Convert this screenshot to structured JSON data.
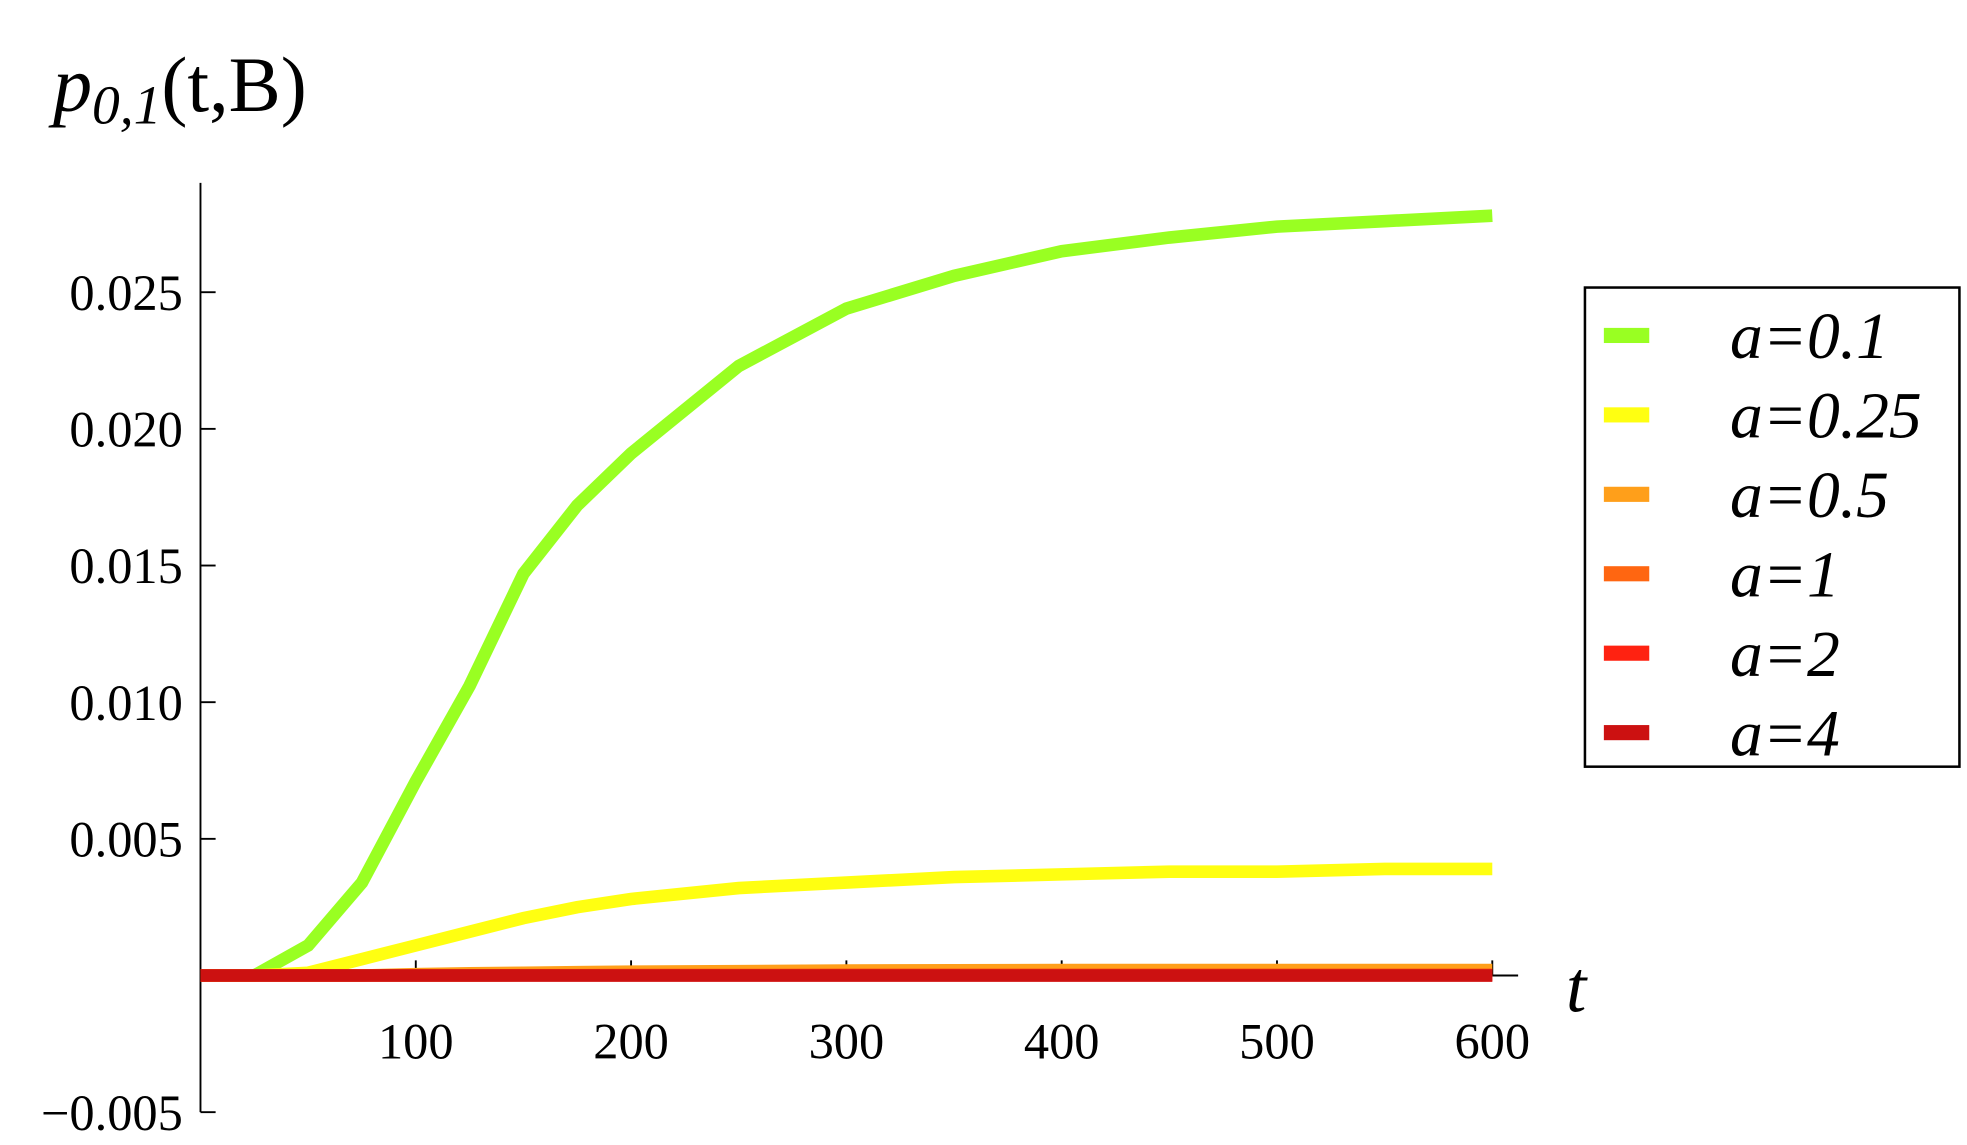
{
  "chart_data": {
    "type": "line",
    "y_label": {
      "base": "p",
      "sub": "0,1",
      "args": "(t,B)"
    },
    "x_label": "t",
    "x": [
      0,
      25,
      50,
      75,
      100,
      125,
      150,
      175,
      200,
      250,
      300,
      350,
      400,
      450,
      500,
      550,
      600
    ],
    "series": [
      {
        "name": "a=0.1",
        "color": "#99ff22",
        "values": [
          0,
          0,
          0.0011,
          0.0034,
          0.0071,
          0.0106,
          0.0147,
          0.0172,
          0.0191,
          0.0223,
          0.0244,
          0.0256,
          0.0265,
          0.027,
          0.0274,
          0.0276,
          0.0278
        ]
      },
      {
        "name": "a=0.25",
        "color": "#ffff11",
        "values": [
          0,
          0,
          0.0001,
          0.0006,
          0.0011,
          0.0016,
          0.0021,
          0.0025,
          0.0028,
          0.0032,
          0.0034,
          0.0036,
          0.0037,
          0.0038,
          0.0038,
          0.0039,
          0.0039
        ]
      },
      {
        "name": "a=0.5",
        "color": "#ff9f1a",
        "values": [
          0,
          0,
          0,
          0,
          5e-05,
          8e-05,
          0.0001,
          0.00012,
          0.00014,
          0.00016,
          0.00018,
          0.00019,
          0.0002,
          0.0002,
          0.0002,
          0.0002,
          0.0002
        ]
      },
      {
        "name": "a=1",
        "color": "#ff6611",
        "values": [
          0,
          0,
          0,
          0,
          0,
          0,
          1e-05,
          1e-05,
          2e-05,
          2e-05,
          3e-05,
          3e-05,
          3e-05,
          3e-05,
          3e-05,
          3e-05,
          3e-05
        ]
      },
      {
        "name": "a=2",
        "color": "#ff2211",
        "values": [
          0,
          0,
          0,
          0,
          0,
          0,
          0,
          0,
          0,
          0,
          0,
          0,
          0,
          0,
          0,
          0,
          0
        ]
      },
      {
        "name": "a=4",
        "color": "#cc1111",
        "values": [
          0,
          0,
          0,
          0,
          0,
          0,
          0,
          0,
          0,
          0,
          0,
          0,
          0,
          0,
          0,
          0,
          0
        ]
      }
    ],
    "xlim": [
      0,
      612
    ],
    "ylim": [
      -0.005,
      0.029
    ],
    "xticks": [
      100,
      200,
      300,
      400,
      500,
      600
    ],
    "yticks": [
      {
        "value": -0.005,
        "label": "−0.005"
      },
      {
        "value": 0.005,
        "label": "0.005"
      },
      {
        "value": 0.01,
        "label": "0.010"
      },
      {
        "value": 0.015,
        "label": "0.015"
      },
      {
        "value": 0.02,
        "label": "0.020"
      },
      {
        "value": 0.025,
        "label": "0.025"
      }
    ],
    "legend": "right"
  }
}
